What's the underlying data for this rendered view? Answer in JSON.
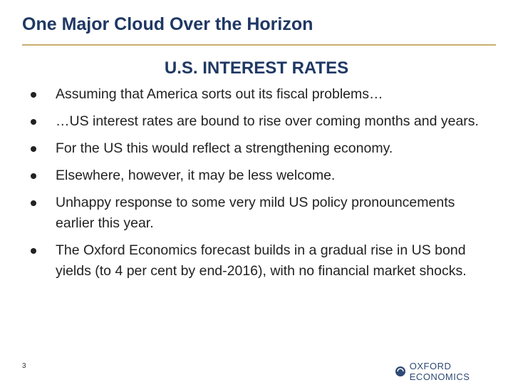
{
  "header": {
    "title": "One Major Cloud Over the Horizon"
  },
  "section": {
    "title": "U.S. INTEREST RATES",
    "bullets": [
      "Assuming that America sorts out its fiscal problems…",
      "…US interest rates are bound to rise over coming months and years.",
      "For the US this would reflect a strengthening economy.",
      "Elsewhere, however, it may be less welcome.",
      "Unhappy response to some very mild US policy pronouncements earlier this year.",
      "The Oxford Economics forecast builds in a gradual rise in US bond yields (to 4 per cent by end-2016), with no financial market shocks."
    ]
  },
  "footer": {
    "page_number": "3",
    "logo": "OXFORD ECONOMICS"
  }
}
